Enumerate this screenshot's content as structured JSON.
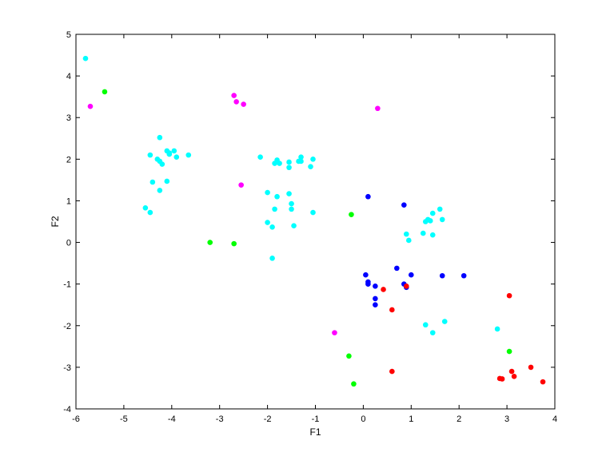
{
  "chart_data": {
    "type": "scatter",
    "title": "",
    "xlabel": "F1",
    "ylabel": "F2",
    "xlim": [
      -6,
      4
    ],
    "ylim": [
      -4,
      5
    ],
    "xticks": [
      "-6",
      "-5",
      "-4",
      "-3",
      "-2",
      "-1",
      "0",
      "1",
      "2",
      "3",
      "4"
    ],
    "yticks": [
      "-4",
      "-3",
      "-2",
      "-1",
      "0",
      "1",
      "2",
      "3",
      "4",
      "5"
    ],
    "grid": false,
    "legend": "none",
    "series": [
      {
        "color": "#00ffff",
        "points": [
          [
            -5.8,
            4.42
          ],
          [
            -4.25,
            2.52
          ],
          [
            -4.45,
            2.1
          ],
          [
            -4.3,
            2.0
          ],
          [
            -4.25,
            1.95
          ],
          [
            -4.2,
            1.88
          ],
          [
            -4.1,
            2.2
          ],
          [
            -4.05,
            2.15
          ],
          [
            -4.05,
            2.12
          ],
          [
            -3.95,
            2.2
          ],
          [
            -3.9,
            2.05
          ],
          [
            -3.65,
            2.1
          ],
          [
            -4.4,
            1.45
          ],
          [
            -4.1,
            1.47
          ],
          [
            -4.25,
            1.25
          ],
          [
            -4.55,
            0.83
          ],
          [
            -4.45,
            0.72
          ],
          [
            -2.15,
            2.05
          ],
          [
            -1.85,
            1.9
          ],
          [
            -1.8,
            1.98
          ],
          [
            -1.75,
            1.9
          ],
          [
            -1.55,
            1.93
          ],
          [
            -1.55,
            1.8
          ],
          [
            -1.35,
            1.95
          ],
          [
            -1.3,
            2.05
          ],
          [
            -1.3,
            1.95
          ],
          [
            -1.1,
            1.82
          ],
          [
            -1.05,
            2.0
          ],
          [
            -2.0,
            1.2
          ],
          [
            -1.8,
            1.1
          ],
          [
            -1.55,
            1.17
          ],
          [
            -1.5,
            0.93
          ],
          [
            -1.5,
            0.8
          ],
          [
            -1.85,
            0.8
          ],
          [
            -2.0,
            0.48
          ],
          [
            -1.9,
            0.37
          ],
          [
            -1.45,
            0.4
          ],
          [
            -1.05,
            0.72
          ],
          [
            -1.9,
            -0.38
          ],
          [
            1.6,
            0.8
          ],
          [
            1.45,
            0.7
          ],
          [
            1.35,
            0.55
          ],
          [
            1.3,
            0.5
          ],
          [
            1.4,
            0.52
          ],
          [
            1.65,
            0.55
          ],
          [
            0.9,
            0.2
          ],
          [
            0.95,
            0.05
          ],
          [
            1.25,
            0.22
          ],
          [
            1.45,
            0.18
          ],
          [
            1.7,
            -1.9
          ],
          [
            1.3,
            -1.98
          ],
          [
            1.45,
            -2.17
          ],
          [
            2.8,
            -2.08
          ]
        ]
      },
      {
        "color": "#ff00ff",
        "points": [
          [
            -5.7,
            3.27
          ],
          [
            -2.7,
            3.53
          ],
          [
            -2.65,
            3.38
          ],
          [
            -2.5,
            3.32
          ],
          [
            0.3,
            3.22
          ],
          [
            -2.55,
            1.38
          ],
          [
            -0.6,
            -2.17
          ]
        ]
      },
      {
        "color": "#00ff00",
        "points": [
          [
            -5.4,
            3.62
          ],
          [
            -0.25,
            0.67
          ],
          [
            -3.2,
            0.0
          ],
          [
            -2.7,
            -0.03
          ],
          [
            -0.3,
            -2.73
          ],
          [
            -0.2,
            -3.4
          ],
          [
            3.05,
            -2.62
          ]
        ]
      },
      {
        "color": "#0000ff",
        "points": [
          [
            0.1,
            1.1
          ],
          [
            0.85,
            0.9
          ],
          [
            0.05,
            -0.78
          ],
          [
            0.1,
            -0.95
          ],
          [
            0.1,
            -1.0
          ],
          [
            0.25,
            -1.05
          ],
          [
            0.25,
            -1.35
          ],
          [
            0.25,
            -1.5
          ],
          [
            0.7,
            -0.62
          ],
          [
            0.85,
            -1.0
          ],
          [
            0.9,
            -1.08
          ],
          [
            1.0,
            -0.78
          ],
          [
            1.65,
            -0.8
          ],
          [
            2.1,
            -0.8
          ]
        ]
      },
      {
        "color": "#ff0000",
        "points": [
          [
            0.42,
            -1.13
          ],
          [
            0.9,
            -1.05
          ],
          [
            0.6,
            -1.62
          ],
          [
            0.6,
            -3.1
          ],
          [
            3.05,
            -1.28
          ],
          [
            3.1,
            -3.1
          ],
          [
            3.15,
            -3.22
          ],
          [
            2.85,
            -3.27
          ],
          [
            2.9,
            -3.28
          ],
          [
            3.5,
            -3.0
          ],
          [
            3.75,
            -3.35
          ]
        ]
      }
    ]
  }
}
